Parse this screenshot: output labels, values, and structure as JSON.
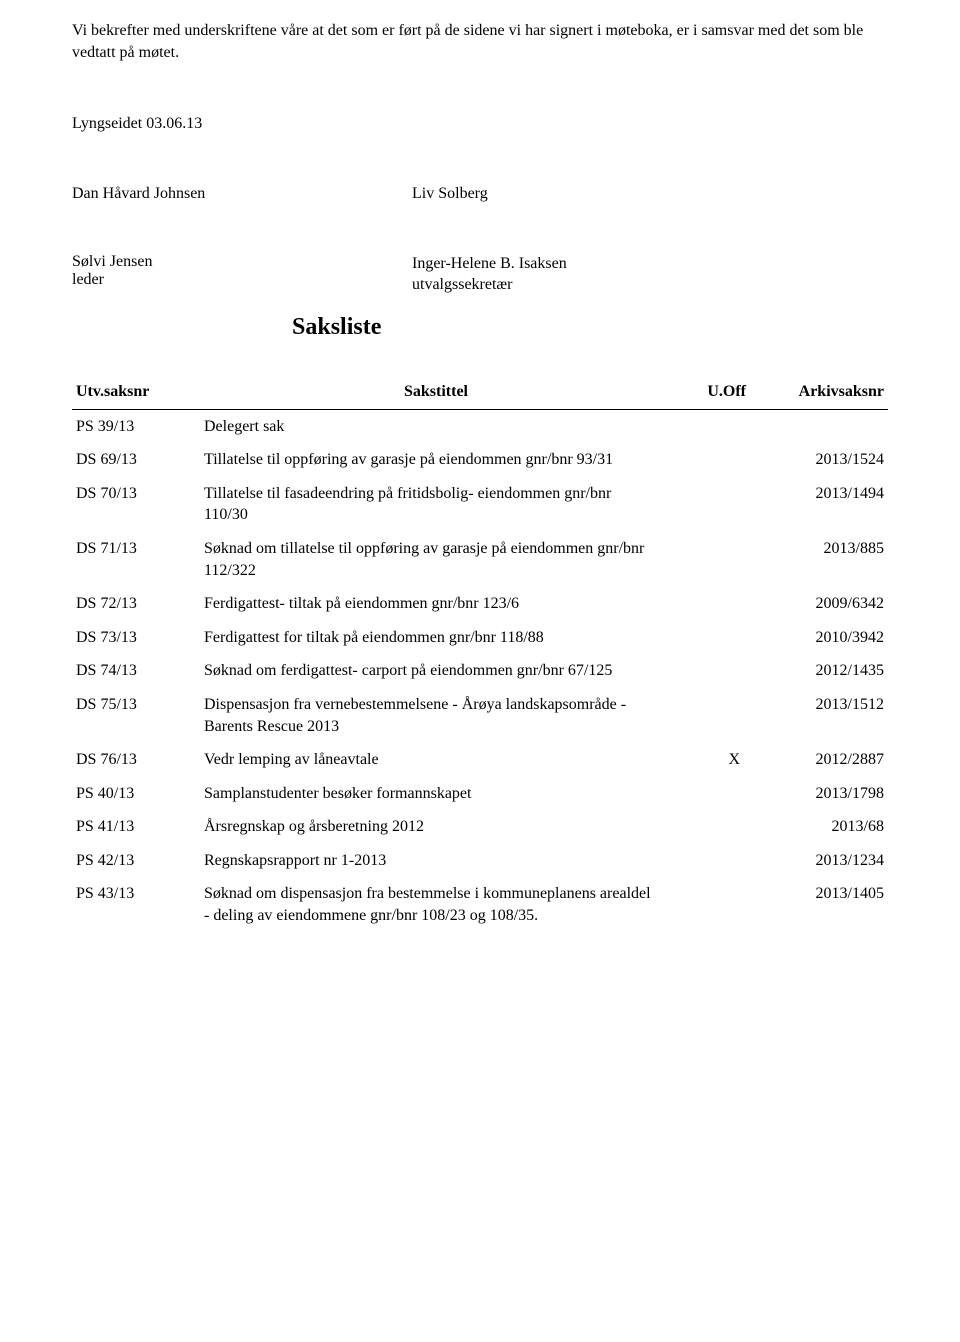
{
  "intro": "Vi bekrefter med underskriftene våre at det som er ført på de sidene vi har signert i møteboka, er i samsvar med det som ble vedtatt på møtet.",
  "date": "Lyngseidet 03.06.13",
  "sign1_left": "Dan Håvard Johnsen",
  "sign1_right": "Liv Solberg",
  "sign2_left_name": "Sølvi Jensen",
  "sign2_left_role": "leder",
  "sign2_right_name": "Inger-Helene B. Isaksen",
  "sign2_right_role": "utvalgssekretær",
  "section_title": "Saksliste",
  "headers": {
    "saksnr": "Utv.saksnr",
    "title": "Sakstittel",
    "uoff": "U.Off",
    "arkiv": "Arkivsaksnr"
  },
  "rows": [
    {
      "saksnr": "PS 39/13",
      "title": "Delegert sak",
      "uoff": "",
      "arkiv": ""
    },
    {
      "saksnr": "DS 69/13",
      "title": "Tillatelse til oppføring av garasje på eiendommen gnr/bnr 93/31",
      "uoff": "",
      "arkiv": "2013/1524"
    },
    {
      "saksnr": "DS 70/13",
      "title": "Tillatelse til fasadeendring på fritidsbolig- eiendommen gnr/bnr 110/30",
      "uoff": "",
      "arkiv": "2013/1494"
    },
    {
      "saksnr": "DS 71/13",
      "title": "Søknad om tillatelse til oppføring av garasje på eiendommen gnr/bnr 112/322",
      "uoff": "",
      "arkiv": "2013/885"
    },
    {
      "saksnr": "DS 72/13",
      "title": "Ferdigattest- tiltak på eiendommen gnr/bnr 123/6",
      "uoff": "",
      "arkiv": "2009/6342"
    },
    {
      "saksnr": "DS 73/13",
      "title": "Ferdigattest for tiltak på eiendommen gnr/bnr 118/88",
      "uoff": "",
      "arkiv": "2010/3942"
    },
    {
      "saksnr": "DS 74/13",
      "title": "Søknad om ferdigattest- carport på eiendommen gnr/bnr 67/125",
      "uoff": "",
      "arkiv": "2012/1435"
    },
    {
      "saksnr": "DS 75/13",
      "title": "Dispensasjon fra vernebestemmelsene - Årøya landskapsområde - Barents Rescue 2013",
      "uoff": "",
      "arkiv": "2013/1512"
    },
    {
      "saksnr": "DS 76/13",
      "title": "Vedr lemping av låneavtale",
      "uoff": "X",
      "arkiv": "2012/2887"
    },
    {
      "saksnr": "PS 40/13",
      "title": "Samplanstudenter besøker formannskapet",
      "uoff": "",
      "arkiv": "2013/1798"
    },
    {
      "saksnr": "PS 41/13",
      "title": "Årsregnskap og årsberetning 2012",
      "uoff": "",
      "arkiv": "2013/68"
    },
    {
      "saksnr": "PS 42/13",
      "title": "Regnskapsrapport nr 1-2013",
      "uoff": "",
      "arkiv": "2013/1234"
    },
    {
      "saksnr": "PS 43/13",
      "title": "Søknad om dispensasjon fra bestemmelse i kommuneplanens arealdel - deling av eiendommene gnr/bnr 108/23 og 108/35.",
      "uoff": "",
      "arkiv": "2013/1405"
    }
  ]
}
